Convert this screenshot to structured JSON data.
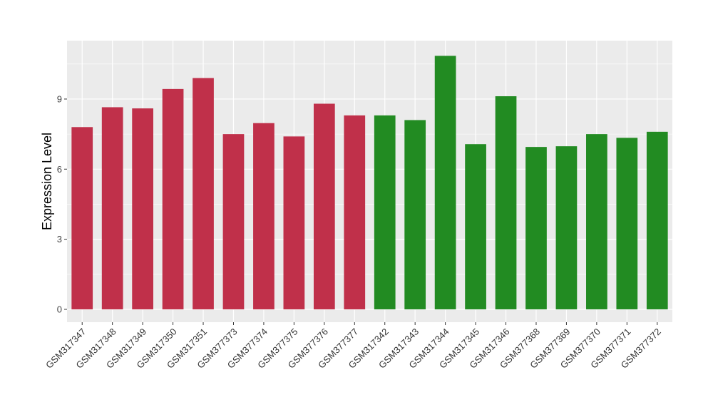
{
  "chart_data": {
    "type": "bar",
    "title": "",
    "xlabel": "",
    "ylabel": "Expression Level",
    "ylim": [
      -0.55,
      11.5
    ],
    "yticks": [
      0,
      3,
      6,
      9
    ],
    "grid": true,
    "legend": "none",
    "categories": [
      "GSM317347",
      "GSM317348",
      "GSM317349",
      "GSM317350",
      "GSM317351",
      "GSM377373",
      "GSM377374",
      "GSM377375",
      "GSM377376",
      "GSM377377",
      "GSM317342",
      "GSM317343",
      "GSM317344",
      "GSM317345",
      "GSM317346",
      "GSM377368",
      "GSM377369",
      "GSM377370",
      "GSM377371",
      "GSM377372"
    ],
    "values": [
      7.8,
      8.65,
      8.6,
      9.43,
      9.9,
      7.5,
      7.97,
      7.4,
      8.8,
      8.3,
      8.3,
      8.1,
      10.85,
      7.07,
      9.12,
      6.95,
      6.98,
      7.5,
      7.34,
      7.6
    ],
    "group_index": [
      0,
      0,
      0,
      0,
      0,
      0,
      0,
      0,
      0,
      0,
      1,
      1,
      1,
      1,
      1,
      1,
      1,
      1,
      1,
      1
    ],
    "group_colors": [
      "#C0304A",
      "#228B22"
    ],
    "panel_color": "#EBEBEB",
    "grid_color": "#FFFFFF"
  }
}
